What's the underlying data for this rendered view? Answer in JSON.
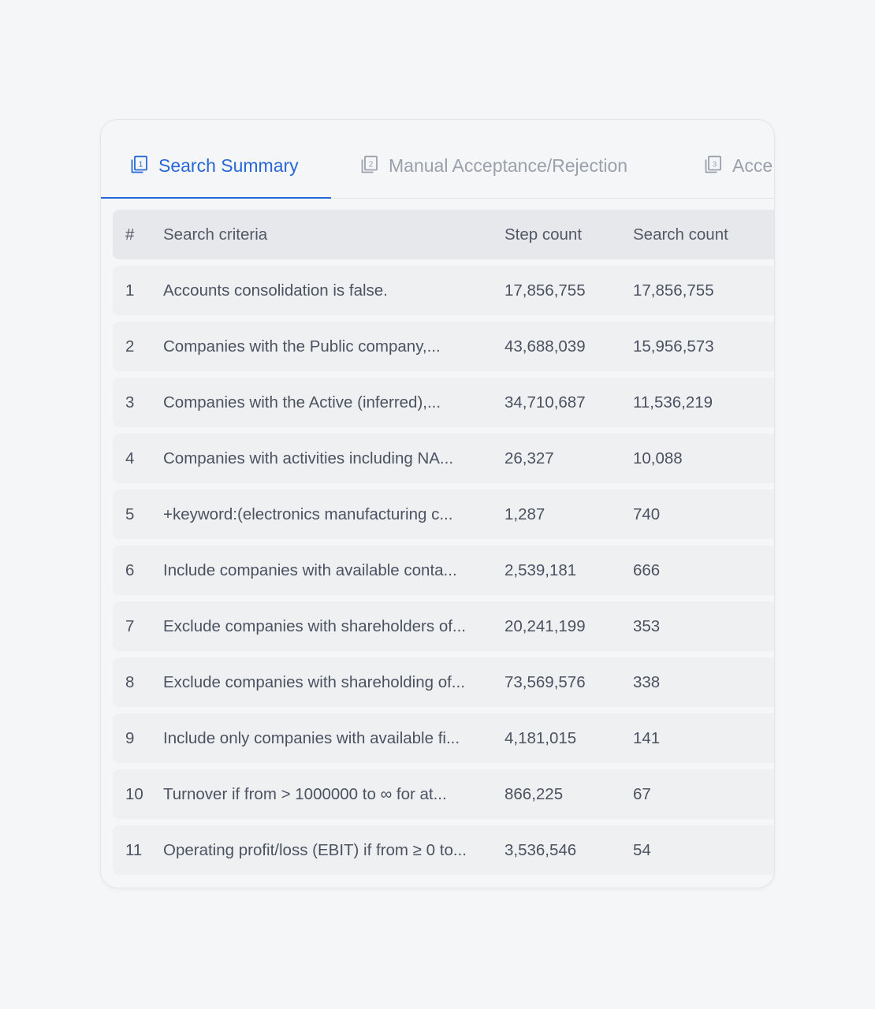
{
  "tabs": [
    {
      "index": "1",
      "label": "Search Summary",
      "active": true
    },
    {
      "index": "2",
      "label": "Manual Acceptance/Rejection",
      "active": false
    },
    {
      "index": "3",
      "label": "Acce",
      "active": false
    }
  ],
  "table": {
    "headers": {
      "num": "#",
      "criteria": "Search criteria",
      "step_count": "Step count",
      "search_count": "Search count"
    },
    "rows": [
      {
        "num": "1",
        "criteria": "Accounts consolidation is false.",
        "step_count": "17,856,755",
        "search_count": "17,856,755"
      },
      {
        "num": "2",
        "criteria": "Companies with the Public company,...",
        "step_count": "43,688,039",
        "search_count": "15,956,573"
      },
      {
        "num": "3",
        "criteria": "Companies with the Active (inferred),...",
        "step_count": "34,710,687",
        "search_count": "11,536,219"
      },
      {
        "num": "4",
        "criteria": "Companies with activities including NA...",
        "step_count": "26,327",
        "search_count": "10,088"
      },
      {
        "num": "5",
        "criteria": "+keyword:(electronics manufacturing c...",
        "step_count": "1,287",
        "search_count": "740"
      },
      {
        "num": "6",
        "criteria": "Include companies with available conta...",
        "step_count": "2,539,181",
        "search_count": "666"
      },
      {
        "num": "7",
        "criteria": "Exclude companies with shareholders of...",
        "step_count": "20,241,199",
        "search_count": "353"
      },
      {
        "num": "8",
        "criteria": "Exclude companies with shareholding of...",
        "step_count": "73,569,576",
        "search_count": "338"
      },
      {
        "num": "9",
        "criteria": "Include only companies with available fi...",
        "step_count": "4,181,015",
        "search_count": "141"
      },
      {
        "num": "10",
        "criteria": "Turnover if from > 1000000 to ∞ for at...",
        "step_count": "866,225",
        "search_count": "67"
      },
      {
        "num": "11",
        "criteria": "Operating profit/loss (EBIT) if from ≥ 0 to...",
        "step_count": "3,536,546",
        "search_count": "54"
      }
    ]
  },
  "colors": {
    "accent": "#2868d6",
    "muted": "#9aa1ab",
    "text": "#4b5260",
    "row_bg": "#eff0f2",
    "header_bg": "#e7e8eb",
    "page_bg": "#f5f6f8"
  },
  "icons": {
    "tab_icon": "numbered-document-stack-icon"
  }
}
